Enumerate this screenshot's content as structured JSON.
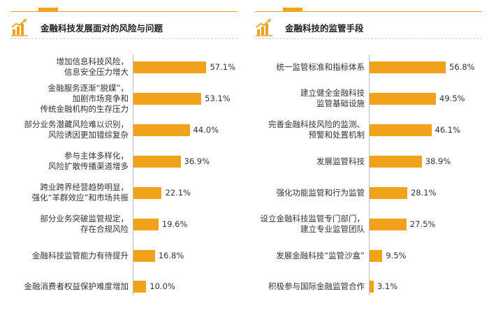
{
  "colors": {
    "bar": "#f0a21a",
    "accent": "#f0a21a",
    "text": "#333333"
  },
  "chart_data": [
    {
      "type": "bar",
      "orientation": "horizontal",
      "title": "金融科技发展面对的风险与问题",
      "icon": "growth-chart-icon",
      "categories": [
        [
          "增加信息科技风险，",
          "信息安全压力增大"
        ],
        [
          "金融服务逐渐“脱媒”，",
          "加剧市场竞争和",
          "传统金融机构的生存压力"
        ],
        [
          "部分业务潜藏风险难以识别，",
          "风险诱因更加错综复杂"
        ],
        [
          "参与主体多样化，",
          "风险扩散传播渠道增多"
        ],
        [
          "跨业跨界经营趋势明显，",
          "强化“羊群效应”和市场共振"
        ],
        [
          "部分业务突破监管规定，",
          "存在合规风险"
        ],
        [
          "金融科技监管能力有待提升"
        ],
        [
          "金融消费者权益保护难度增加"
        ]
      ],
      "values": [
        57.1,
        53.1,
        44.0,
        36.9,
        22.1,
        19.6,
        16.8,
        10.0
      ],
      "value_labels": [
        "57.1%",
        "53.1%",
        "44.0%",
        "36.9%",
        "22.1%",
        "19.6%",
        "16.8%",
        "10.0%"
      ],
      "xlim": [
        0,
        100
      ]
    },
    {
      "type": "bar",
      "orientation": "horizontal",
      "title": "金融科技的监管手段",
      "icon": "growth-chart-icon",
      "categories": [
        [
          "统一监管标准和指标体系"
        ],
        [
          "建立健全金融科技",
          "监管基础设施"
        ],
        [
          "完善金融科技风险的监测、",
          "预警和处置机制"
        ],
        [
          "发展监管科技"
        ],
        [
          "强化功能监管和行为监管"
        ],
        [
          "设立金融科技监管专门部门，",
          "建立专业监管团队"
        ],
        [
          "发展金融科技“监管沙盒”"
        ],
        [
          "积极参与国际金融监管合作"
        ]
      ],
      "values": [
        56.8,
        49.5,
        46.1,
        38.9,
        28.1,
        27.5,
        9.5,
        3.1
      ],
      "value_labels": [
        "56.8%",
        "49.5%",
        "46.1%",
        "38.9%",
        "28.1%",
        "27.5%",
        "9.5%",
        "3.1%"
      ],
      "xlim": [
        0,
        100
      ]
    }
  ]
}
